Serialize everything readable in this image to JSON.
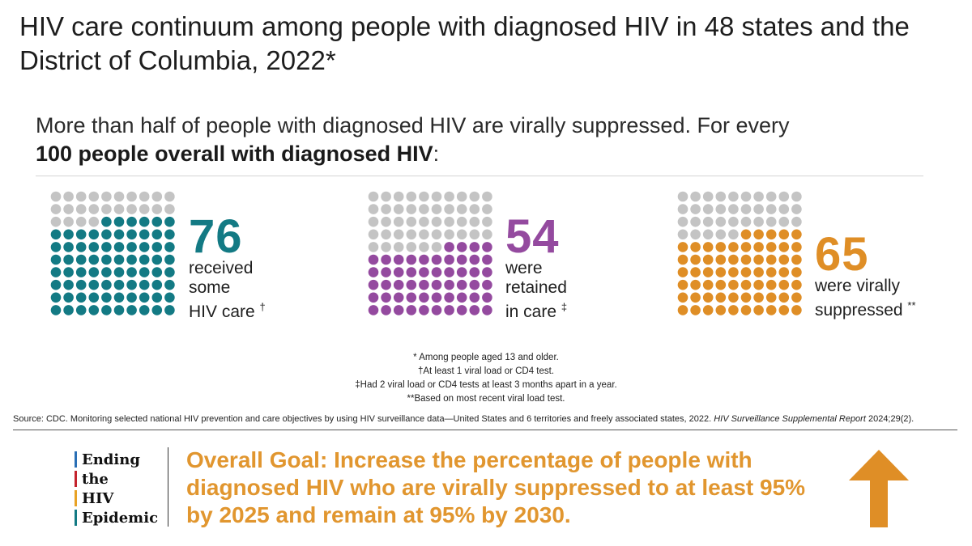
{
  "title": "HIV care continuum among people with diagnosed HIV in 48 states and the District of Columbia, 2022*",
  "subtitle": {
    "lead": "More than half of people with diagnosed HIV are virally suppressed. For every",
    "bold": "100 people overall with diagnosed HIV",
    "tail": ":"
  },
  "chart_data": {
    "type": "waffle",
    "total": 100,
    "grid": {
      "rows": 10,
      "cols": 10
    },
    "base_color": "#c4c4c4",
    "series": [
      {
        "value": 76,
        "label_number": "76",
        "label_text": "received\nsome\nHIV care",
        "marker": "†",
        "color": "#137a84"
      },
      {
        "value": 54,
        "label_number": "54",
        "label_text": "were\nretained\nin care",
        "marker": "‡",
        "color": "#944a9f"
      },
      {
        "value": 65,
        "label_number": "65",
        "label_text": "were virally\nsuppressed",
        "marker": "**",
        "color": "#df8e26"
      }
    ]
  },
  "notes": [
    "* Among people aged 13 and older.",
    "†At least 1 viral load or CD4 test.",
    "‡Had 2 viral load or CD4 tests at least 3 months apart in a year.",
    "**Based on most recent viral load test."
  ],
  "source": {
    "text": "Source: CDC. Monitoring selected national HIV prevention and care objectives by using HIV surveillance data—United States and 6 territories and freely associated states, 2022. ",
    "italic": "HIV Surveillance Supplemental Report",
    "tail": " 2024;29(2)."
  },
  "ehe": {
    "words": [
      "Ending",
      "the",
      "HIV",
      "Epidemic"
    ],
    "bar_colors": [
      "#2a6fb5",
      "#c4232d",
      "#e8a225",
      "#137a84"
    ]
  },
  "goal": {
    "label": "Overall Goal:",
    "text": " Increase the percentage of people with diagnosed HIV who are virally suppressed to at least 95% by 2025 and remain at 95% by 2030."
  },
  "arrow": {
    "icon": "up-arrow-icon",
    "color": "#df8e26"
  }
}
